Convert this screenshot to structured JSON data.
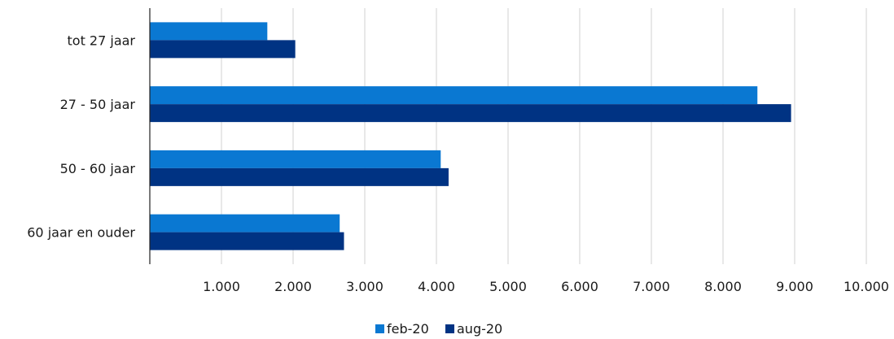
{
  "chart_data": {
    "type": "bar",
    "orientation": "horizontal",
    "title": "",
    "xlabel": "",
    "ylabel": "",
    "categories": [
      "tot 27 jaar",
      "27 - 50 jaar",
      "50 - 60 jaar",
      "60 jaar en ouder"
    ],
    "series": [
      {
        "name": "feb-20",
        "values": [
          1640,
          8480,
          4060,
          2650
        ],
        "color": "#0a78d2"
      },
      {
        "name": "aug-20",
        "values": [
          2030,
          8950,
          4170,
          2710
        ],
        "color": "#003383"
      }
    ],
    "xlim": [
      0,
      10000
    ],
    "x_ticks": [
      1000,
      2000,
      3000,
      4000,
      5000,
      6000,
      7000,
      8000,
      9000,
      10000
    ],
    "x_tick_labels": [
      "1.000",
      "2.000",
      "3.000",
      "4.000",
      "5.000",
      "6.000",
      "7.000",
      "8.000",
      "9.000",
      "10.000"
    ],
    "grid": "vertical",
    "legend_position": "bottom"
  }
}
